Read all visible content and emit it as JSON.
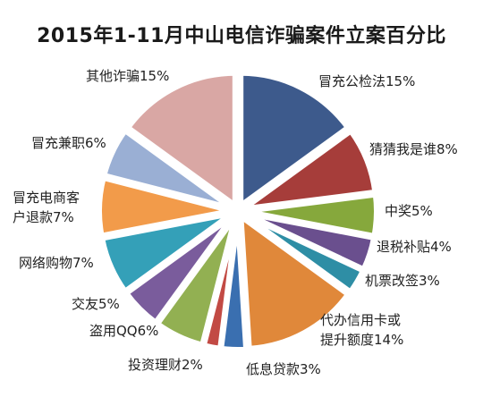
{
  "chart_data": {
    "type": "pie",
    "title": "2015年1-11月中山电信诈骗案件立案百分比",
    "slices": [
      {
        "category": "冒充公检法",
        "value": 15,
        "label": "冒充公检法15%",
        "color": "#3d5a8c"
      },
      {
        "category": "猜猜我是谁",
        "value": 8,
        "label": "猜猜我是谁8%",
        "color": "#a63d3a"
      },
      {
        "category": "中奖",
        "value": 5,
        "label": "中奖5%",
        "color": "#86a83c"
      },
      {
        "category": "退税补贴",
        "value": 4,
        "label": "退税补贴4%",
        "color": "#6a4f8e"
      },
      {
        "category": "机票改签",
        "value": 3,
        "label": "机票改签3%",
        "color": "#2e8ea5"
      },
      {
        "category": "代办信用卡或提升额度",
        "value": 14,
        "label": "代办信用卡或\n提升额度14%",
        "color": "#e0883a"
      },
      {
        "category": "低息贷款",
        "value": 3,
        "label": "低息贷款3%",
        "color": "#3a6fb0"
      },
      {
        "category": "投资理财",
        "value": 2,
        "label": "投资理财2%",
        "color": "#c24a44"
      },
      {
        "category": "盗用QQ",
        "value": 6,
        "label": "盗用QQ6%",
        "color": "#92b052"
      },
      {
        "category": "交友",
        "value": 5,
        "label": "交友5%",
        "color": "#7a5c9c"
      },
      {
        "category": "网络购物",
        "value": 7,
        "label": "网络购物7%",
        "color": "#34a0b8"
      },
      {
        "category": "冒充电商客户退款",
        "value": 7,
        "label": "冒充电商客\n户退款7%",
        "color": "#f29b4a"
      },
      {
        "category": "冒充兼职",
        "value": 6,
        "label": "冒充兼职6%",
        "color": "#9aafd4"
      },
      {
        "category": "其他诈骗",
        "value": 15,
        "label": "其他诈骗15%",
        "color": "#d9a7a4"
      }
    ]
  }
}
